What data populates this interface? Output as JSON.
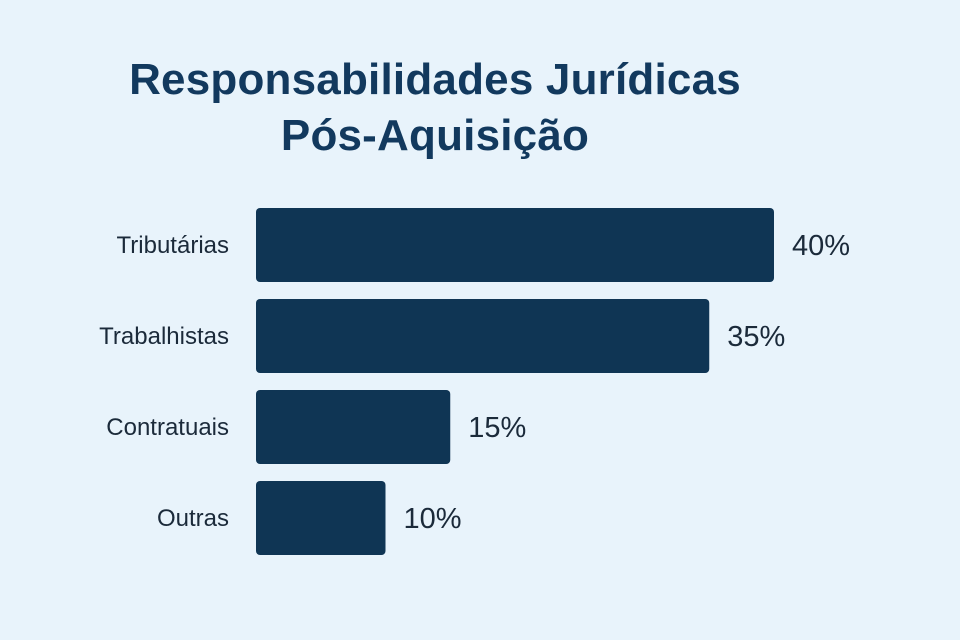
{
  "chart_data": {
    "type": "bar",
    "orientation": "horizontal",
    "title_lines": [
      "Responsabilidades Jurídicas",
      "Pós-Aquisição"
    ],
    "categories": [
      "Tributárias",
      "Trabalhistas",
      "Contratuais",
      "Outras"
    ],
    "values": [
      40,
      35,
      15,
      10
    ],
    "value_labels": [
      "40%",
      "35%",
      "15%",
      "10%"
    ],
    "unit": "%",
    "xlim": [
      0,
      40
    ],
    "grid": false,
    "legend": "none",
    "bar_color": "#0f3554"
  }
}
